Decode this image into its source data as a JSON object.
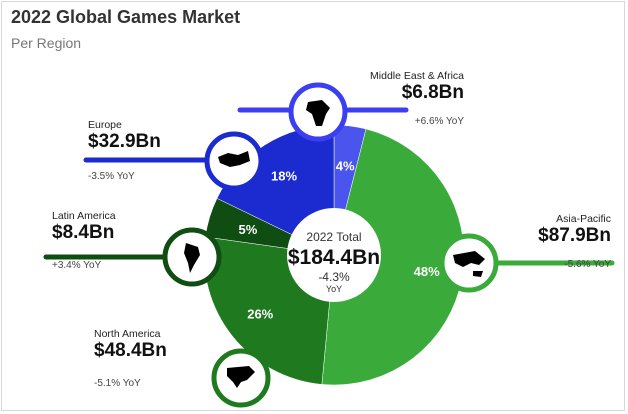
{
  "header": {
    "title": "2022 Global Games Market",
    "subtitle": "Per Region"
  },
  "colors": {
    "asia_pacific": "#3aaa3a",
    "north_america": "#1f7a1f",
    "latin_america": "#0f4d12",
    "europe": "#1c2bcf",
    "middle_east_africa": "#4a55ee"
  },
  "chart_data": {
    "type": "pie",
    "variant": "donut",
    "center": {
      "label": "2022 Total",
      "value": "$184.4Bn",
      "change": "-4.3%",
      "change_unit": "YoY"
    },
    "slices": [
      {
        "region": "Middle East & Africa",
        "value_label": "$6.8Bn",
        "value": 6.8,
        "percent": 4,
        "percent_label": "4%",
        "yoy": "+6.6% YoY",
        "icon": "middle-east-africa-map-icon"
      },
      {
        "region": "Asia-Pacific",
        "value_label": "$87.9Bn",
        "value": 87.9,
        "percent": 48,
        "percent_label": "48%",
        "yoy": "-5.6% YoY",
        "icon": "asia-pacific-map-icon"
      },
      {
        "region": "North America",
        "value_label": "$48.4Bn",
        "value": 48.4,
        "percent": 26,
        "percent_label": "26%",
        "yoy": "-5.1% YoY",
        "icon": "north-america-map-icon"
      },
      {
        "region": "Latin America",
        "value_label": "$8.4Bn",
        "value": 8.4,
        "percent": 5,
        "percent_label": "5%",
        "yoy": "+3.4% YoY",
        "icon": "latin-america-map-icon"
      },
      {
        "region": "Europe",
        "value_label": "$32.9Bn",
        "value": 32.9,
        "percent": 18,
        "percent_label": "18%",
        "yoy": "-3.5% YoY",
        "icon": "europe-map-icon"
      }
    ]
  }
}
